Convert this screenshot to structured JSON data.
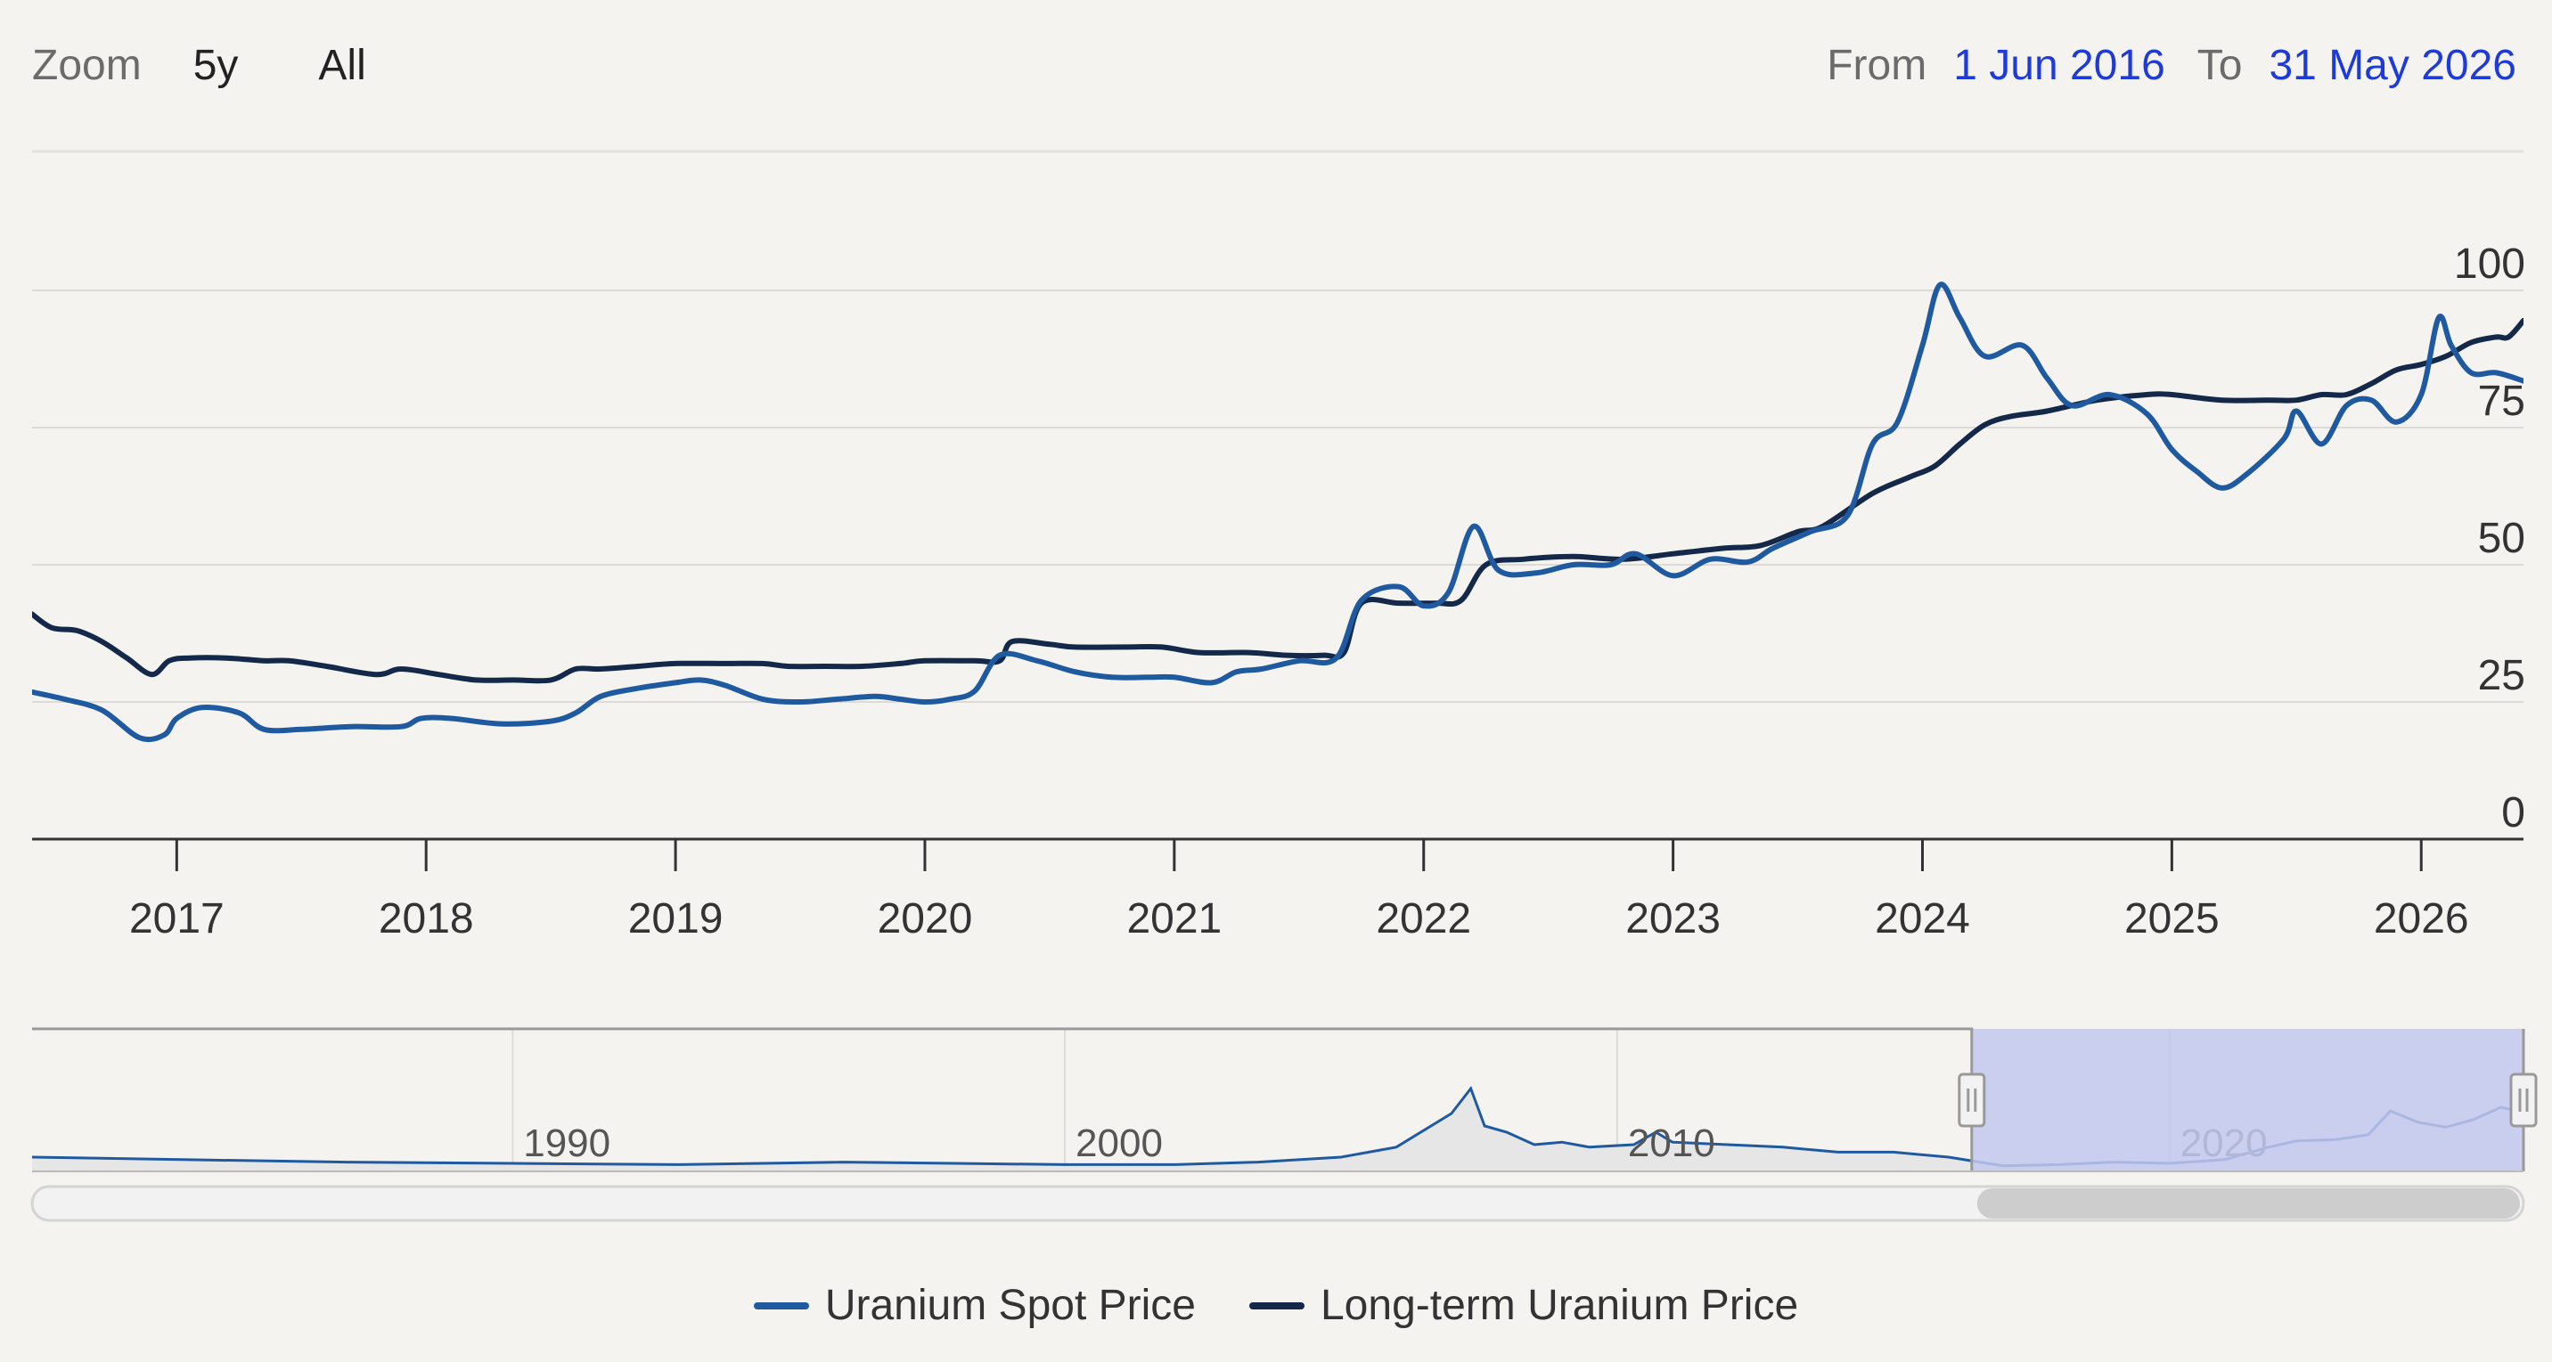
{
  "zoom": {
    "label": "Zoom",
    "buttons": [
      "5y",
      "All"
    ]
  },
  "range": {
    "from_label": "From",
    "from": "1 Jun 2016",
    "to_label": "To",
    "to": "31 May 2026"
  },
  "colors": {
    "spot": "#1f5aa0",
    "longterm": "#14294a",
    "navigator_fill": "#c3c8ef",
    "background": "#f4f3ef"
  },
  "chart_data": {
    "type": "line",
    "title": "",
    "xlabel": "",
    "ylabel": "",
    "ylim": [
      0,
      100
    ],
    "yticks": [
      "0",
      "25",
      "50",
      "75",
      "100"
    ],
    "xlim": [
      2016.42,
      2026.41
    ],
    "xticks": [
      "2017",
      "2018",
      "2019",
      "2020",
      "2021",
      "2022",
      "2023",
      "2024",
      "2025",
      "2026"
    ],
    "grid": true,
    "legend": "bottom",
    "series": [
      {
        "name": "Uranium Spot Price",
        "x": [
          2016.42,
          2016.55,
          2016.7,
          2016.85,
          2016.95,
          2017.0,
          2017.1,
          2017.25,
          2017.35,
          2017.5,
          2017.7,
          2017.9,
          2017.98,
          2018.1,
          2018.3,
          2018.5,
          2018.6,
          2018.7,
          2018.85,
          2019.0,
          2019.1,
          2019.2,
          2019.35,
          2019.5,
          2019.65,
          2019.8,
          2019.9,
          2020.0,
          2020.1,
          2020.2,
          2020.3,
          2020.45,
          2020.6,
          2020.75,
          2020.9,
          2021.0,
          2021.15,
          2021.25,
          2021.35,
          2021.5,
          2021.65,
          2021.75,
          2021.9,
          2022.0,
          2022.1,
          2022.2,
          2022.3,
          2022.45,
          2022.6,
          2022.75,
          2022.85,
          2023.0,
          2023.15,
          2023.3,
          2023.4,
          2023.55,
          2023.7,
          2023.8,
          2023.9,
          2024.0,
          2024.07,
          2024.15,
          2024.25,
          2024.4,
          2024.5,
          2024.6,
          2024.75,
          2024.9,
          2025.0,
          2025.1,
          2025.2,
          2025.3,
          2025.45,
          2025.5,
          2025.6,
          2025.7,
          2025.8,
          2025.9,
          2026.0,
          2026.07,
          2026.12,
          2026.2,
          2026.3,
          2026.41
        ],
        "values": [
          26.8,
          25.5,
          23.5,
          18.5,
          19,
          22,
          24,
          23,
          20,
          20,
          20.5,
          20.5,
          22,
          22,
          21,
          21.5,
          23,
          26,
          27.5,
          28.5,
          29,
          28,
          25.5,
          25,
          25.5,
          26,
          25.5,
          25,
          25.5,
          27,
          33.5,
          32.5,
          30.5,
          29.5,
          29.5,
          29.5,
          28.5,
          30.5,
          31,
          32.5,
          33,
          43.5,
          46,
          42.5,
          45,
          57,
          49,
          48.5,
          50,
          50,
          52,
          48,
          51,
          50.5,
          53,
          56,
          59,
          72,
          76,
          90,
          101,
          95,
          88,
          90,
          84,
          79,
          81,
          77.5,
          71,
          67,
          64,
          66.5,
          73,
          78,
          72,
          79,
          80,
          76,
          81,
          95,
          90,
          85,
          85,
          83.5
        ]
      },
      {
        "name": "Long-term Uranium Price",
        "x": [
          2016.42,
          2016.5,
          2016.6,
          2016.7,
          2016.8,
          2016.9,
          2016.97,
          2017.05,
          2017.2,
          2017.35,
          2017.45,
          2017.6,
          2017.8,
          2017.9,
          2018.05,
          2018.2,
          2018.35,
          2018.5,
          2018.6,
          2018.7,
          2018.85,
          2019.0,
          2019.2,
          2019.35,
          2019.45,
          2019.6,
          2019.75,
          2019.9,
          2020.0,
          2020.2,
          2020.3,
          2020.35,
          2020.5,
          2020.6,
          2020.8,
          2020.95,
          2021.1,
          2021.3,
          2021.45,
          2021.6,
          2021.68,
          2021.75,
          2021.9,
          2022.05,
          2022.15,
          2022.25,
          2022.4,
          2022.6,
          2022.8,
          2023.0,
          2023.2,
          2023.35,
          2023.5,
          2023.6,
          2023.8,
          2023.95,
          2024.05,
          2024.15,
          2024.25,
          2024.35,
          2024.5,
          2024.7,
          2024.9,
          2025.0,
          2025.2,
          2025.4,
          2025.5,
          2025.6,
          2025.7,
          2025.8,
          2025.9,
          2026.0,
          2026.1,
          2026.2,
          2026.3,
          2026.35,
          2026.41
        ],
        "values": [
          41,
          38.5,
          38,
          36,
          33,
          30,
          32.5,
          33,
          33,
          32.5,
          32.5,
          31.5,
          30,
          31,
          30,
          29,
          29,
          29,
          31,
          31,
          31.5,
          32,
          32,
          32,
          31.5,
          31.5,
          31.5,
          32,
          32.5,
          32.5,
          32.5,
          36,
          35.5,
          35,
          35,
          35,
          34,
          34,
          33.5,
          33.5,
          34,
          43,
          43,
          43,
          43.5,
          50,
          51,
          51.5,
          51,
          52,
          53,
          53.5,
          56,
          57,
          63,
          66,
          68,
          72,
          75.5,
          77,
          78,
          80,
          81,
          81,
          80,
          80,
          80,
          81,
          81,
          83,
          85.5,
          86.5,
          88,
          90.5,
          91.5,
          91.5,
          94.5
        ]
      }
    ]
  },
  "navigator": {
    "xlim": [
      1981.3,
      2026.41
    ],
    "selected": [
      2016.42,
      2026.41
    ],
    "labels": [
      "1990",
      "2000",
      "2010",
      "2020"
    ]
  }
}
